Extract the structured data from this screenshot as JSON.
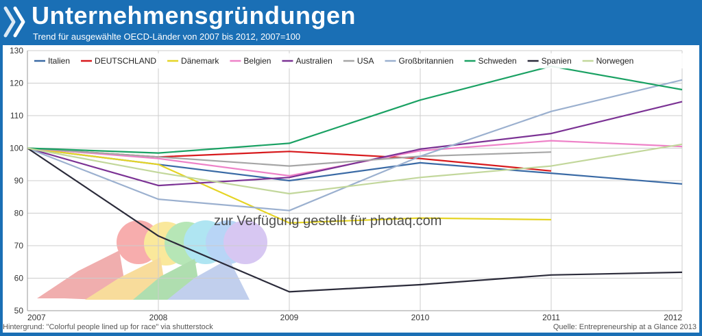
{
  "header": {
    "title": "Unternehmensgründungen",
    "subtitle": "Trend für ausgewählte OECD-Länder von 2007 bis 2012, 2007=100"
  },
  "footer": {
    "background_credit": "Hintergrund: \"Colorful people lined up for race\" via shutterstock",
    "source": "Quelle: Entrepreneurship at a Glance 2013"
  },
  "watermark": "zur Verfügung gestellt für photaq.com",
  "colors": {
    "header_bg": "#1a6fb5",
    "grid": "#cccccc"
  },
  "chart_data": {
    "type": "line",
    "title": "Unternehmensgründungen",
    "subtitle": "Trend für ausgewählte OECD-Länder von 2007 bis 2012, 2007=100",
    "x": [
      "2007",
      "2008",
      "2009",
      "2010",
      "2011",
      "2012"
    ],
    "ylim": [
      50,
      130
    ],
    "yticks": [
      50,
      60,
      70,
      80,
      90,
      100,
      110,
      120,
      130
    ],
    "grid": true,
    "legend_position": "top",
    "series": [
      {
        "name": "Italien",
        "color": "#3a6aa5",
        "values": [
          100,
          95,
          90,
          95.5,
          92.3,
          89
        ]
      },
      {
        "name": "DEUTSCHLAND",
        "color": "#d7191c",
        "values": [
          100,
          97.3,
          99,
          96.8,
          93,
          null
        ]
      },
      {
        "name": "Dänemark",
        "color": "#e5d425",
        "values": [
          100,
          95,
          77,
          78.5,
          78,
          null
        ]
      },
      {
        "name": "Belgien",
        "color": "#ee82c8",
        "values": [
          100,
          96.8,
          91.5,
          99.2,
          102.3,
          100.5
        ]
      },
      {
        "name": "Australien",
        "color": "#7b3294",
        "values": [
          100,
          88.5,
          91,
          99.7,
          104.5,
          114.3
        ]
      },
      {
        "name": "USA",
        "color": "#a6a6a6",
        "values": [
          100,
          97.3,
          94.5,
          97.5,
          98.8,
          null
        ]
      },
      {
        "name": "Großbritannien",
        "color": "#9bb0cf",
        "values": [
          100,
          84.3,
          80.8,
          97.5,
          111.3,
          121
        ]
      },
      {
        "name": "Schweden",
        "color": "#1aa163",
        "values": [
          100,
          98.5,
          101.5,
          114.8,
          125.2,
          118
        ]
      },
      {
        "name": "Spanien",
        "color": "#2b2b3a",
        "values": [
          100,
          73,
          55.8,
          58,
          61,
          61.8
        ]
      },
      {
        "name": "Norwegen",
        "color": "#c2d79b",
        "values": [
          100,
          92.5,
          86,
          91,
          94.5,
          101.2
        ]
      }
    ]
  }
}
